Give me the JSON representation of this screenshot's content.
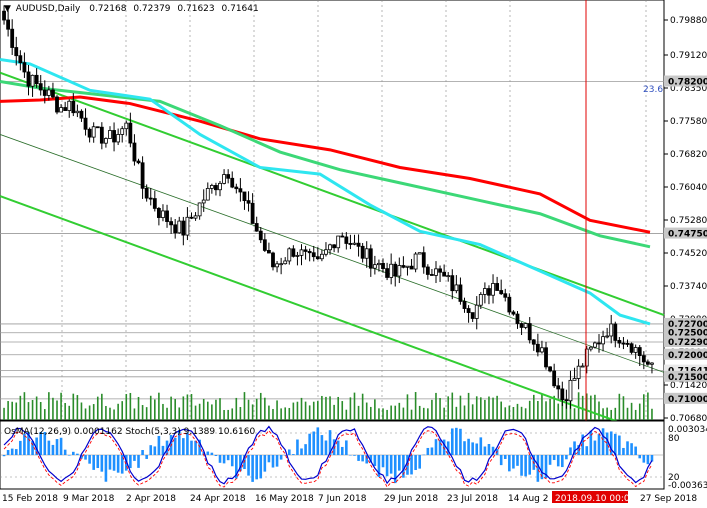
{
  "chart_data": {
    "type": "candlestick",
    "title": "AUDUSD,Daily",
    "ohlc_header": [
      "0.72168",
      "0.72379",
      "0.71623",
      "0.71641"
    ],
    "price_ticks": [
      "0.79880",
      "0.79120",
      "0.78350",
      "0.77580",
      "0.76820",
      "0.76040",
      "0.75280",
      "0.74520",
      "0.73740",
      "0.72980",
      "0.72200",
      "0.71420",
      "0.70680"
    ],
    "level_labels": [
      {
        "text": "0.78200",
        "value": 0.782
      },
      {
        "text": "0.74750",
        "value": 0.7475
      },
      {
        "text": "0.72700",
        "value": 0.727
      },
      {
        "text": "0.72500",
        "value": 0.725
      },
      {
        "text": "0.72290",
        "value": 0.7229
      },
      {
        "text": "0.72000",
        "value": 0.72
      },
      {
        "text": "0.71641",
        "value": 0.71641
      },
      {
        "text": "0.71500",
        "value": 0.715
      },
      {
        "text": "0.71000",
        "value": 0.71
      }
    ],
    "fib_label": "23.6",
    "x_dates": [
      "15 Feb 2018",
      "9 Mar 2018",
      "2 Apr 2018",
      "24 Apr 2018",
      "16 May 2018",
      "7 Jun 2018",
      "29 Jun 2018",
      "23 Jul 2018",
      "14 Aug 2",
      "2018.09.10 00:00",
      "27 Sep 2018"
    ],
    "ylim": [
      0.7052,
      0.8005
    ],
    "colors": {
      "bull": "#000000",
      "bear": "#000000",
      "ema_red": "#ff0000",
      "ema_green": "#3cd877",
      "ema_cyan": "#2ee6f0",
      "channel": "#32cd32",
      "volume": "#2a8c2a",
      "osma": "#1e90ff",
      "stoch_main": "#0000cd",
      "stoch_signal": "#ff0000",
      "crosshair": "#ff0000",
      "axis_tag_bg": "#c8c8c8",
      "last_tag_bg": "#e8e8e8"
    },
    "indicator": {
      "label": "OsMA(12,26,9) 0.0001162 Stoch(5,3,3) 9.1389 10.6160",
      "ticks": [
        "0.003034",
        "80",
        "20",
        "-0.003637"
      ]
    }
  }
}
